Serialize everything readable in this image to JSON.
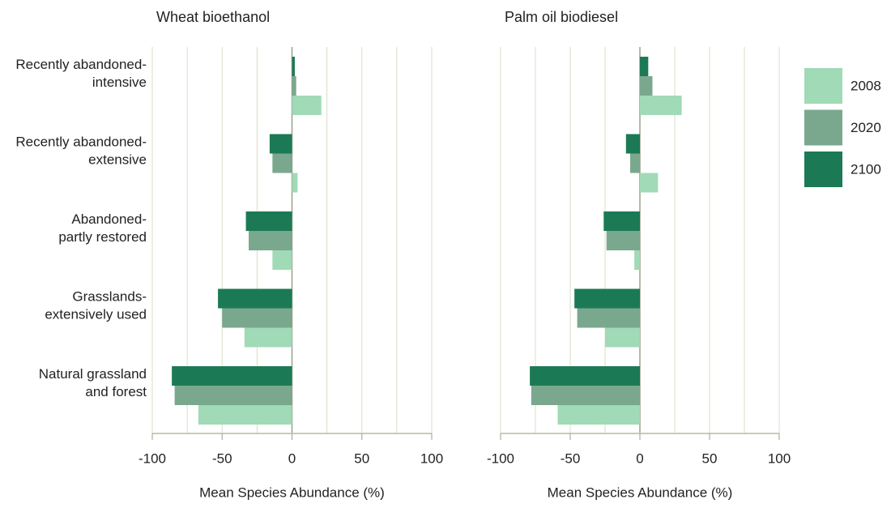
{
  "chart_data": [
    {
      "type": "bar",
      "title": "Wheat bioethanol",
      "xlabel": "Mean Species Abundance (%)",
      "categories": [
        "Recently abandoned-\nintensive",
        "Recently abandoned-\nextensive",
        "Abandoned-\npartly restored",
        "Grasslands-\nextensively used",
        "Natural grassland\nand forest"
      ],
      "series": [
        {
          "name": "2008",
          "color": "#a0dab6",
          "values": [
            21,
            4,
            -14,
            -34,
            -67
          ]
        },
        {
          "name": "2020",
          "color": "#7aa88e",
          "values": [
            3,
            -14,
            -31,
            -50,
            -84
          ]
        },
        {
          "name": "2100",
          "color": "#1b7a55",
          "values": [
            2,
            -16,
            -33,
            -53,
            -86
          ]
        }
      ],
      "xlim": [
        -100,
        100
      ],
      "xticks": [
        -100,
        -50,
        0,
        50,
        100
      ],
      "xgrid": [
        -100,
        -75,
        -50,
        -25,
        0,
        25,
        50,
        75,
        100
      ],
      "legend": "right"
    },
    {
      "type": "bar",
      "title": "Palm oil biodiesel",
      "xlabel": "Mean Species Abundance (%)",
      "series": [
        {
          "color": "#a0dab6",
          "values": [
            30,
            13,
            -4,
            -25,
            -59
          ]
        },
        {
          "color": "#7aa88e",
          "values": [
            9,
            -7,
            -24,
            -45,
            -78
          ]
        },
        {
          "color": "#1b7a55",
          "values": [
            6,
            -10,
            -26,
            -47,
            -79
          ]
        }
      ],
      "xlim": [
        -100,
        100
      ],
      "xticks": [
        -100,
        -50,
        0,
        50,
        100
      ],
      "xgrid": [
        -100,
        -75,
        -50,
        -25,
        0,
        25,
        50,
        75,
        100
      ]
    }
  ]
}
